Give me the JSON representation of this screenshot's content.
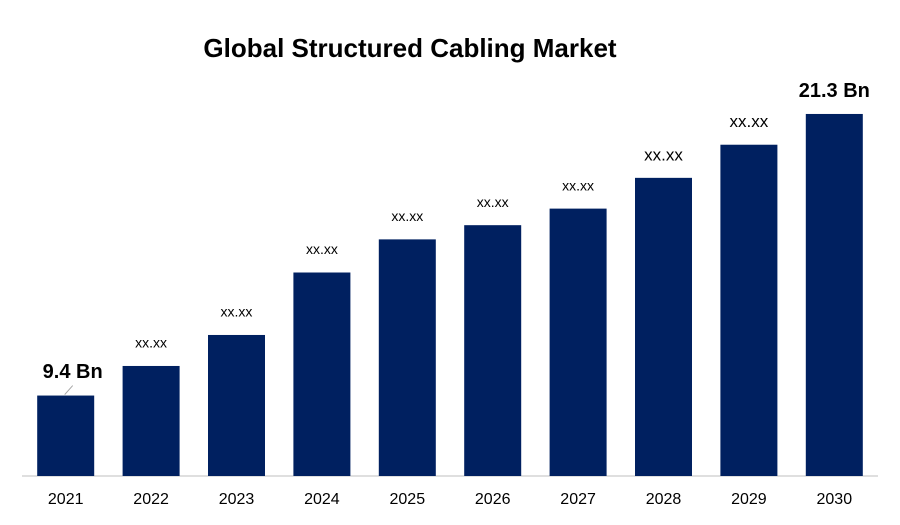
{
  "chart_data": {
    "type": "bar",
    "title": "Global Structured Cabling Market",
    "categories": [
      "2021",
      "2022",
      "2023",
      "2024",
      "2025",
      "2026",
      "2027",
      "2028",
      "2029",
      "2030"
    ],
    "values": [
      9.4,
      10.65,
      11.96,
      14.6,
      16.0,
      16.6,
      17.3,
      18.6,
      20.0,
      21.3
    ],
    "value_labels": [
      "9.4 Bn",
      "xx.xx",
      "xx.xx",
      "xx.xx",
      "xx.xx",
      "xx.xx",
      "xx.xx",
      "xx.xx",
      "xx.xx",
      "21.3 Bn"
    ],
    "color": "#002060",
    "ylim": [
      6,
      22
    ]
  }
}
